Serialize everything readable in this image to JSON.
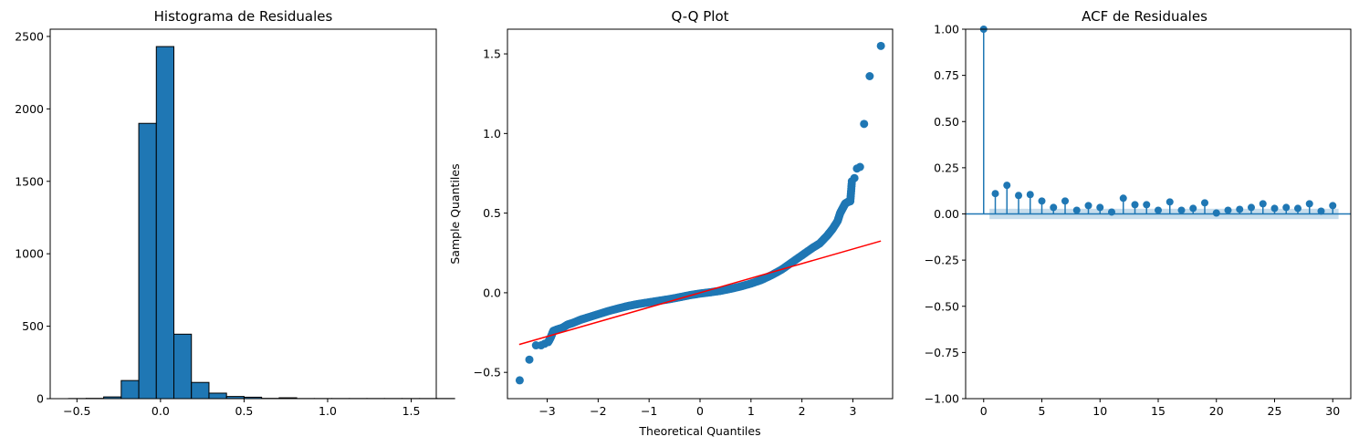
{
  "chart_data": [
    {
      "type": "bar",
      "title": "Histograma de Residuales",
      "xlabel": "",
      "ylabel": "",
      "xlim": [
        -0.66,
        1.65
      ],
      "ylim": [
        0,
        2550
      ],
      "xticks": [
        -0.5,
        0.0,
        0.5,
        1.0,
        1.5
      ],
      "xtick_labels": [
        "−0.5",
        "0.0",
        "0.5",
        "1.0",
        "1.5"
      ],
      "yticks": [
        0,
        500,
        1000,
        1500,
        2000,
        2500
      ],
      "ytick_labels": [
        "0",
        "500",
        "1000",
        "1500",
        "2000",
        "2500"
      ],
      "bin_start": -0.55,
      "bin_width": 0.105,
      "values": [
        1,
        2,
        12,
        125,
        1900,
        2430,
        445,
        112,
        38,
        15,
        10,
        2,
        6,
        1,
        1,
        1,
        1,
        1,
        1,
        1,
        1,
        1
      ],
      "bar_color": "#1f77b4",
      "edge_color": "#000000"
    },
    {
      "type": "scatter",
      "title": "Q-Q Plot",
      "xlabel": "Theoretical Quantiles",
      "ylabel": "Sample Quantiles",
      "xlim": [
        -3.78,
        3.78
      ],
      "ylim": [
        -0.665,
        1.655
      ],
      "xticks": [
        -3,
        -2,
        -1,
        0,
        1,
        2,
        3
      ],
      "xtick_labels": [
        "−3",
        "−2",
        "−1",
        "0",
        "1",
        "2",
        "3"
      ],
      "yticks": [
        -0.5,
        0.0,
        0.5,
        1.0,
        1.5
      ],
      "ytick_labels": [
        "−0.5",
        "0.0",
        "0.5",
        "1.0",
        "1.5"
      ],
      "points": [
        [
          -3.54,
          -0.55
        ],
        [
          -3.35,
          -0.42
        ],
        [
          -3.22,
          -0.33
        ],
        [
          -3.12,
          -0.33
        ],
        [
          -3.05,
          -0.32
        ],
        [
          -2.98,
          -0.31
        ],
        [
          -2.93,
          -0.28
        ],
        [
          -2.88,
          -0.24
        ],
        [
          -2.8,
          -0.23
        ],
        [
          -2.7,
          -0.22
        ],
        [
          -2.6,
          -0.2
        ],
        [
          -2.5,
          -0.19
        ],
        [
          -2.35,
          -0.17
        ],
        [
          -2.2,
          -0.155
        ],
        [
          -2.0,
          -0.135
        ],
        [
          -1.8,
          -0.115
        ],
        [
          -1.6,
          -0.098
        ],
        [
          -1.4,
          -0.082
        ],
        [
          -1.2,
          -0.07
        ],
        [
          -1.0,
          -0.06
        ],
        [
          -0.8,
          -0.05
        ],
        [
          -0.6,
          -0.04
        ],
        [
          -0.4,
          -0.028
        ],
        [
          -0.2,
          -0.015
        ],
        [
          0.0,
          -0.005
        ],
        [
          0.2,
          0.003
        ],
        [
          0.4,
          0.012
        ],
        [
          0.6,
          0.025
        ],
        [
          0.8,
          0.04
        ],
        [
          1.0,
          0.058
        ],
        [
          1.2,
          0.08
        ],
        [
          1.4,
          0.11
        ],
        [
          1.6,
          0.145
        ],
        [
          1.8,
          0.19
        ],
        [
          2.0,
          0.235
        ],
        [
          2.2,
          0.28
        ],
        [
          2.35,
          0.31
        ],
        [
          2.5,
          0.36
        ],
        [
          2.6,
          0.4
        ],
        [
          2.7,
          0.45
        ],
        [
          2.75,
          0.5
        ],
        [
          2.8,
          0.53
        ],
        [
          2.85,
          0.56
        ],
        [
          2.9,
          0.57
        ],
        [
          2.95,
          0.575
        ],
        [
          2.98,
          0.7
        ],
        [
          3.03,
          0.72
        ],
        [
          3.08,
          0.78
        ],
        [
          3.14,
          0.79
        ],
        [
          3.22,
          1.06
        ],
        [
          3.33,
          1.36
        ],
        [
          3.55,
          1.55
        ]
      ],
      "line": {
        "x": [
          -3.55,
          3.55
        ],
        "y": [
          -0.325,
          0.325
        ],
        "color": "#ff0000"
      },
      "marker_color": "#1f77b4"
    },
    {
      "type": "stem",
      "title": "ACF de Residuales",
      "xlabel": "",
      "ylabel": "",
      "xlim": [
        -1.55,
        31.55
      ],
      "ylim": [
        -1.0,
        1.0
      ],
      "xticks": [
        0,
        5,
        10,
        15,
        20,
        25,
        30
      ],
      "xtick_labels": [
        "0",
        "5",
        "10",
        "15",
        "20",
        "25",
        "30"
      ],
      "yticks": [
        -1.0,
        -0.75,
        -0.5,
        -0.25,
        0.0,
        0.25,
        0.5,
        0.75,
        1.0
      ],
      "ytick_labels": [
        "−1.00",
        "−0.75",
        "−0.50",
        "−0.25",
        "0.00",
        "0.25",
        "0.50",
        "0.75",
        "1.00"
      ],
      "lags": [
        0,
        1,
        2,
        3,
        4,
        5,
        6,
        7,
        8,
        9,
        10,
        11,
        12,
        13,
        14,
        15,
        16,
        17,
        18,
        19,
        20,
        21,
        22,
        23,
        24,
        25,
        26,
        27,
        28,
        29,
        30
      ],
      "values": [
        1.0,
        0.11,
        0.155,
        0.1,
        0.105,
        0.07,
        0.035,
        0.07,
        0.02,
        0.045,
        0.035,
        0.01,
        0.085,
        0.05,
        0.05,
        0.02,
        0.065,
        0.02,
        0.03,
        0.06,
        0.005,
        0.02,
        0.025,
        0.035,
        0.055,
        0.03,
        0.035,
        0.03,
        0.055,
        0.015,
        0.045
      ],
      "conf_band": 0.028,
      "marker_color": "#1f77b4",
      "band_color": "#1f77b4"
    }
  ]
}
